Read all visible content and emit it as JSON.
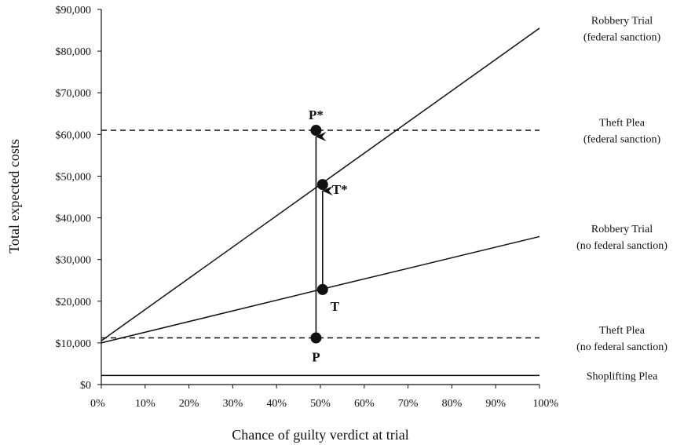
{
  "chart_data": {
    "type": "line",
    "xlabel": "Chance of guilty verdict at trial",
    "ylabel": "Total expected costs",
    "xlim": [
      0,
      100
    ],
    "ylim": [
      0,
      90000
    ],
    "x_ticks": [
      "0%",
      "10%",
      "20%",
      "30%",
      "40%",
      "50%",
      "60%",
      "70%",
      "80%",
      "90%",
      "100%"
    ],
    "y_ticks": [
      "$0",
      "$10,000",
      "$20,000",
      "$30,000",
      "$40,000",
      "$50,000",
      "$60,000",
      "$70,000",
      "$80,000",
      "$90,000"
    ],
    "grid": false,
    "series": [
      {
        "label_lines": [
          "Robbery Trial",
          "(federal sanction)"
        ],
        "style": "solid",
        "x": [
          0,
          100
        ],
        "y": [
          10500,
          85500
        ]
      },
      {
        "label_lines": [
          "Theft Plea",
          "(federal sanction)"
        ],
        "style": "dashed",
        "x": [
          0,
          100
        ],
        "y": [
          61000,
          61000
        ]
      },
      {
        "label_lines": [
          "Robbery Trial",
          "(no federal sanction)"
        ],
        "style": "solid",
        "x": [
          0,
          50,
          100
        ],
        "y": [
          10000,
          22800,
          35500
        ]
      },
      {
        "label_lines": [
          "Theft Plea",
          "(no federal sanction)"
        ],
        "style": "dashed",
        "x": [
          0,
          100
        ],
        "y": [
          11200,
          11200
        ]
      },
      {
        "label_lines": [
          "Shoplifting Plea"
        ],
        "style": "solid",
        "x": [
          0,
          100
        ],
        "y": [
          2200,
          2200
        ]
      }
    ],
    "points": [
      {
        "label": "P*",
        "x": 49,
        "y": 61000
      },
      {
        "label": "T*",
        "x": 50.5,
        "y": 48000
      },
      {
        "label": "T",
        "x": 50.5,
        "y": 22800
      },
      {
        "label": "P",
        "x": 49,
        "y": 11200
      }
    ],
    "arrows": [
      {
        "from": "P",
        "to": "P*"
      },
      {
        "from": "T",
        "to": "T*"
      }
    ]
  }
}
